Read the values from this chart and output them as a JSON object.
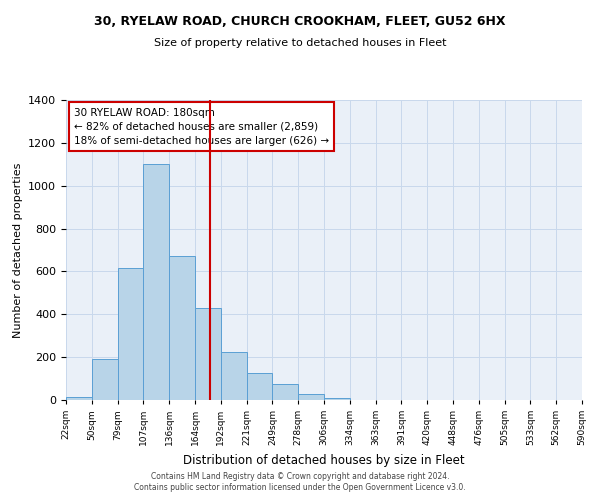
{
  "title": "30, RYELAW ROAD, CHURCH CROOKHAM, FLEET, GU52 6HX",
  "subtitle": "Size of property relative to detached houses in Fleet",
  "xlabel": "Distribution of detached houses by size in Fleet",
  "ylabel": "Number of detached properties",
  "bin_labels": [
    "22sqm",
    "50sqm",
    "79sqm",
    "107sqm",
    "136sqm",
    "164sqm",
    "192sqm",
    "221sqm",
    "249sqm",
    "278sqm",
    "306sqm",
    "334sqm",
    "363sqm",
    "391sqm",
    "420sqm",
    "448sqm",
    "476sqm",
    "505sqm",
    "533sqm",
    "562sqm",
    "590sqm"
  ],
  "bar_values": [
    15,
    190,
    615,
    1100,
    670,
    430,
    225,
    125,
    75,
    30,
    8,
    0,
    0,
    0,
    0,
    0,
    0,
    0,
    0,
    0
  ],
  "bar_color": "#b8d4e8",
  "bar_edge_color": "#5a9fd4",
  "marker_line_color": "#cc0000",
  "annotation_line1": "30 RYELAW ROAD: 180sqm",
  "annotation_line2": "← 82% of detached houses are smaller (2,859)",
  "annotation_line3": "18% of semi-detached houses are larger (626) →",
  "annotation_box_color": "#ffffff",
  "annotation_box_edge_color": "#cc0000",
  "grid_color": "#c8d8ec",
  "background_color": "#ffffff",
  "plot_bg_color": "#eaf0f8",
  "ylim": [
    0,
    1400
  ],
  "yticks": [
    0,
    200,
    400,
    600,
    800,
    1000,
    1200,
    1400
  ],
  "footnote1": "Contains HM Land Registry data © Crown copyright and database right 2024.",
  "footnote2": "Contains public sector information licensed under the Open Government Licence v3.0."
}
